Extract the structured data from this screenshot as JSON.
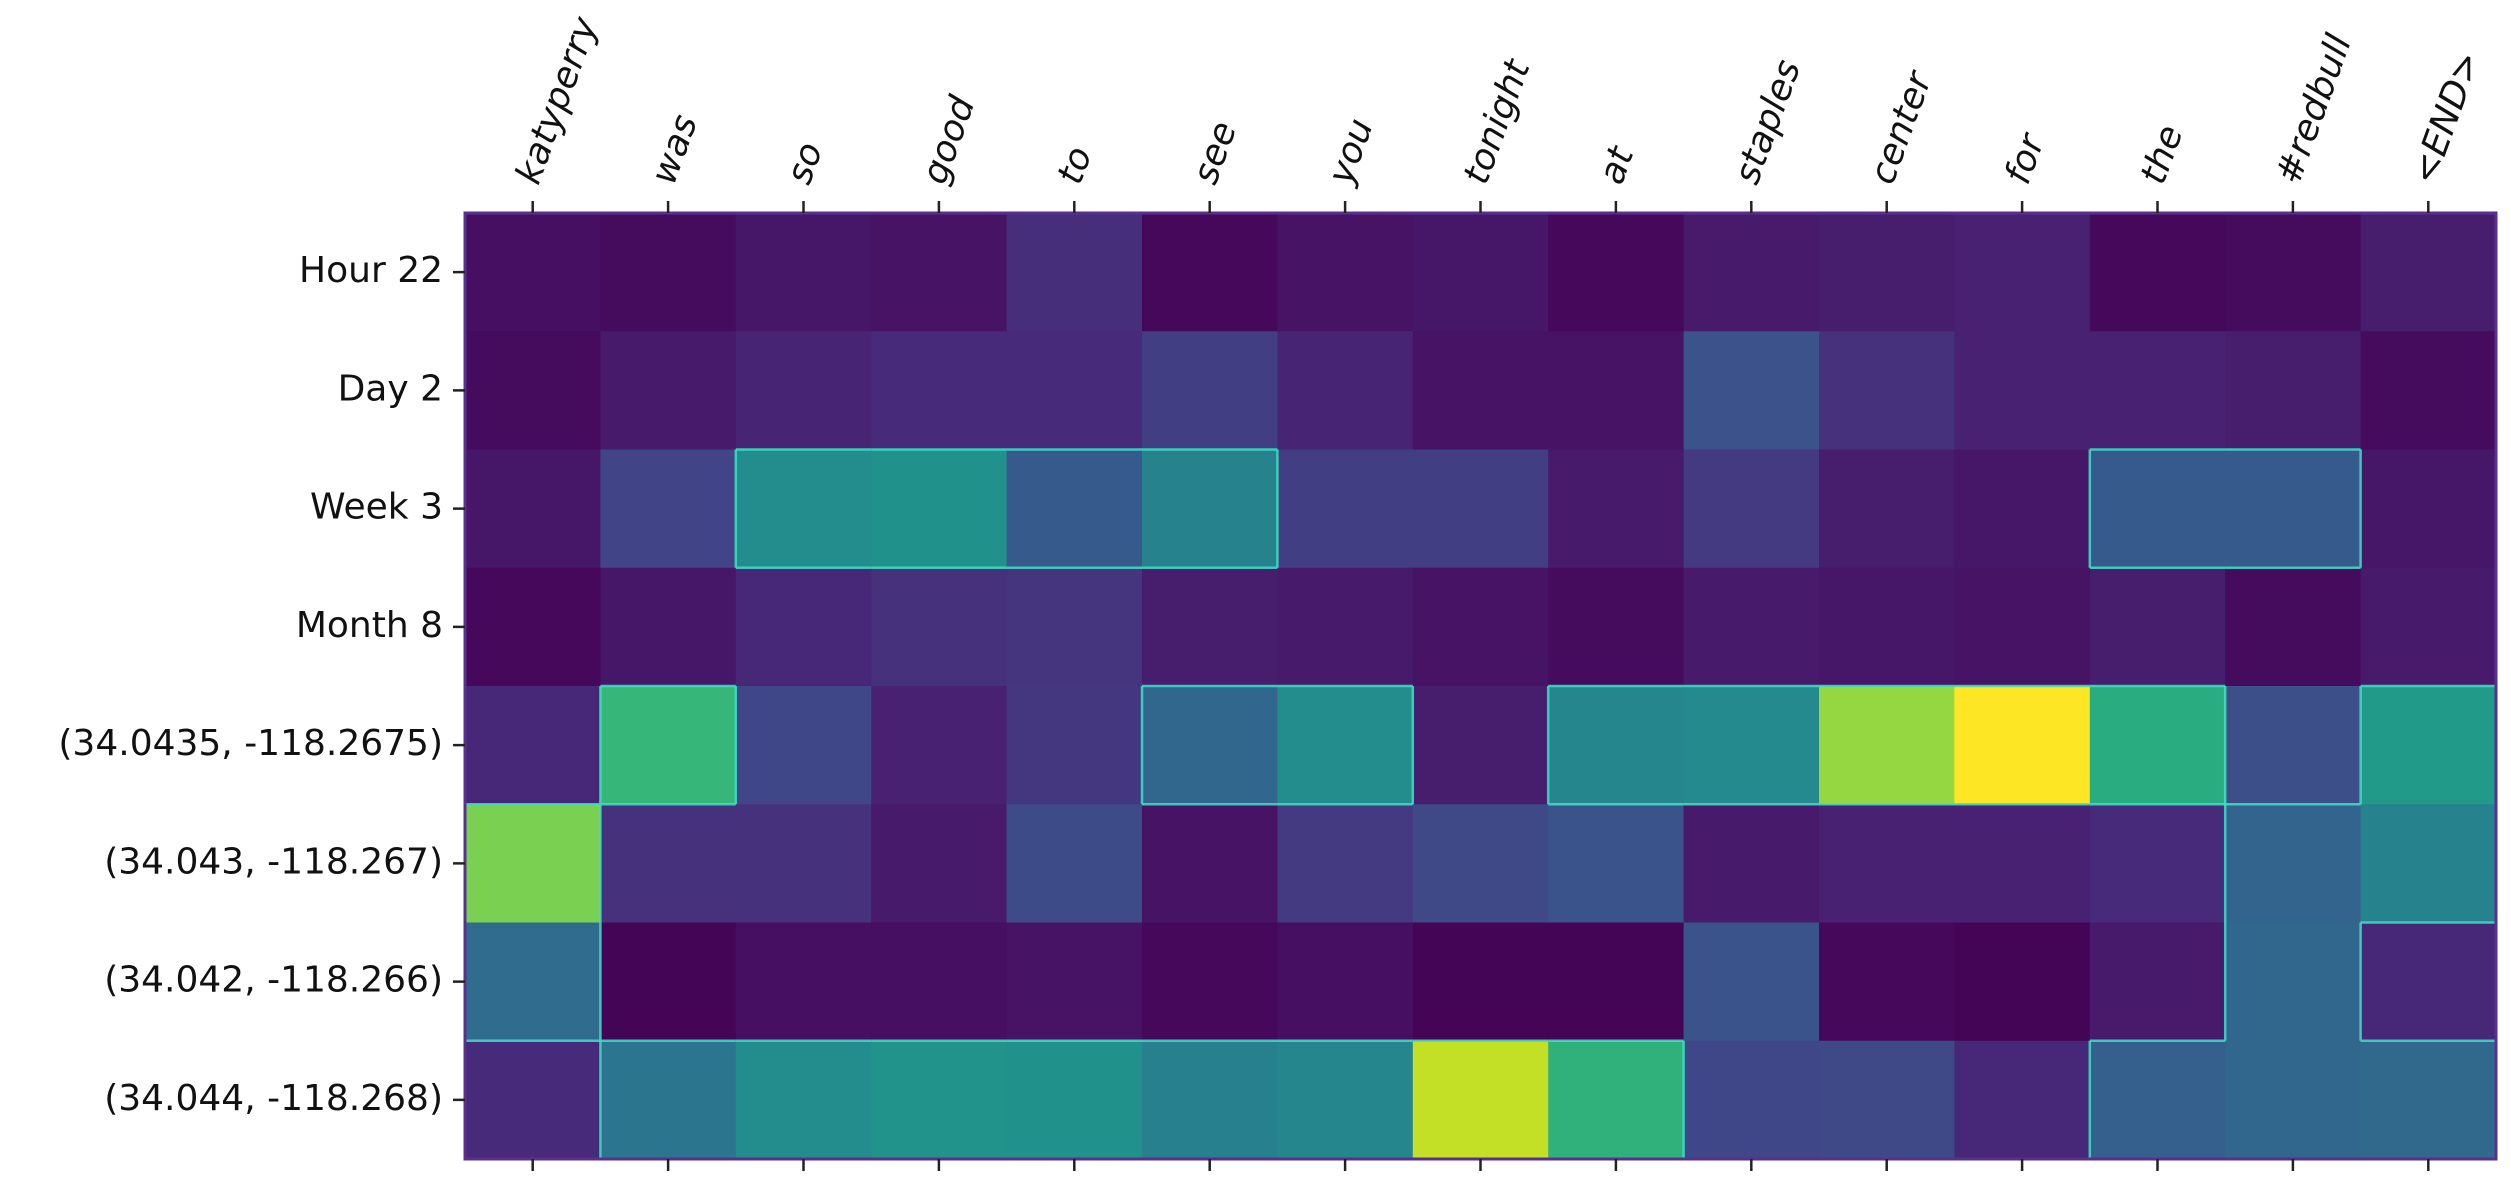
{
  "chart_data": {
    "type": "heatmap",
    "title": "",
    "xlabel": "",
    "ylabel": "",
    "colormap": "viridis",
    "grid": false,
    "x_labels": [
      "katyperry",
      "was",
      "so",
      "good",
      "to",
      "see",
      "you",
      "tonight",
      "at",
      "staples",
      "center",
      "for",
      "the",
      "#redbull",
      "<END>"
    ],
    "y_labels": [
      "Hour 22",
      "Day 2",
      "Week 3",
      "Month 8",
      "(34.0435, -118.2675)",
      "(34.043, -118.267)",
      "(34.042, -118.266)",
      "(34.044, -118.268)"
    ],
    "values": [
      [
        0.04,
        0.03,
        0.06,
        0.05,
        0.13,
        0.02,
        0.05,
        0.06,
        0.02,
        0.07,
        0.08,
        0.09,
        0.02,
        0.03,
        0.08
      ],
      [
        0.03,
        0.07,
        0.1,
        0.12,
        0.12,
        0.18,
        0.1,
        0.05,
        0.05,
        0.25,
        0.14,
        0.09,
        0.09,
        0.08,
        0.03
      ],
      [
        0.06,
        0.2,
        0.48,
        0.5,
        0.28,
        0.44,
        0.18,
        0.18,
        0.07,
        0.17,
        0.08,
        0.06,
        0.28,
        0.28,
        0.06
      ],
      [
        0.02,
        0.06,
        0.11,
        0.14,
        0.15,
        0.08,
        0.07,
        0.05,
        0.03,
        0.07,
        0.06,
        0.05,
        0.08,
        0.03,
        0.07
      ],
      [
        0.11,
        0.66,
        0.21,
        0.09,
        0.16,
        0.33,
        0.48,
        0.08,
        0.46,
        0.47,
        0.84,
        1.0,
        0.62,
        0.24,
        0.54
      ],
      [
        0.8,
        0.14,
        0.14,
        0.07,
        0.23,
        0.05,
        0.17,
        0.22,
        0.26,
        0.07,
        0.09,
        0.09,
        0.12,
        0.32,
        0.44
      ],
      [
        0.35,
        0.01,
        0.04,
        0.04,
        0.05,
        0.02,
        0.04,
        0.01,
        0.01,
        0.26,
        0.02,
        0.01,
        0.07,
        0.33,
        0.11
      ],
      [
        0.12,
        0.39,
        0.48,
        0.51,
        0.5,
        0.43,
        0.46,
        0.91,
        0.64,
        0.21,
        0.22,
        0.11,
        0.3,
        0.33,
        0.34
      ]
    ],
    "vmin": 0,
    "vmax": 1,
    "colors": {
      "axes_frame": "#5b2f8f",
      "tick": "#222222",
      "cell_border": "#3ee0c5"
    }
  }
}
